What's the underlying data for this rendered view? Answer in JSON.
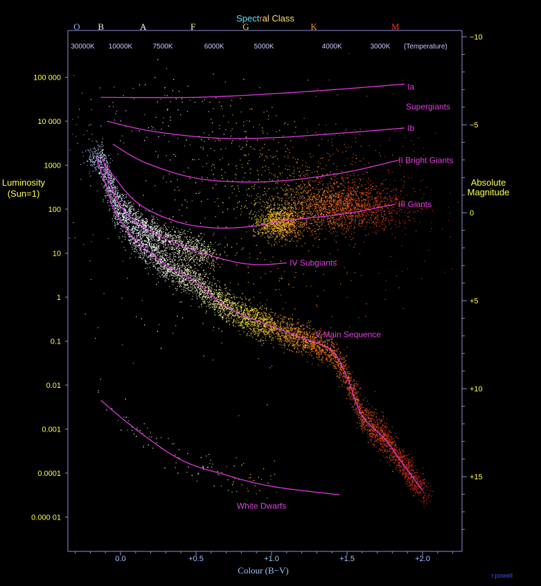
{
  "chart_data": {
    "type": "scatter",
    "subtype": "hertzsprung-russell-diagram",
    "title": {
      "parts": [
        "Spect",
        "r",
        "al Class"
      ],
      "colors": [
        "#66ddff",
        "#ff6666",
        "#ffe066"
      ]
    },
    "xlabel": "Colour (B−V)",
    "y_left_label": [
      "Luminosity",
      "(Sun=1)"
    ],
    "y_right_label": [
      "Absolute",
      "Magnitude"
    ],
    "credit": "r.powell",
    "colors": {
      "axis": "#8f8fd8",
      "luminosity_text": "#ffff44",
      "class_text": "#9ec4ff",
      "temp_text": "#c8c8ff",
      "curve": "#e036e0",
      "label": "#e040e0"
    },
    "xlim": [
      -0.35,
      2.25
    ],
    "x_ticks": [
      {
        "v": 0.0,
        "label": "0.0"
      },
      {
        "v": 0.5,
        "label": "+0.5"
      },
      {
        "v": 1.0,
        "label": "+1.0"
      },
      {
        "v": 1.5,
        "label": "+1.5"
      },
      {
        "v": 2.0,
        "label": "+2.0"
      }
    ],
    "y_left_scale": "log10",
    "y_left_ticks": [
      {
        "v": 100000,
        "label": "100 000"
      },
      {
        "v": 10000,
        "label": "10 000"
      },
      {
        "v": 1000,
        "label": "1000"
      },
      {
        "v": 100,
        "label": "100"
      },
      {
        "v": 10,
        "label": "10"
      },
      {
        "v": 1,
        "label": "1"
      },
      {
        "v": 0.1,
        "label": "0.1"
      },
      {
        "v": 0.01,
        "label": "0.01"
      },
      {
        "v": 0.001,
        "label": "0.001"
      },
      {
        "v": 0.0001,
        "label": "0.0001"
      },
      {
        "v": 1e-05,
        "label": "0.000 01"
      }
    ],
    "y_right_ticks": [
      {
        "v": -10,
        "label": "−10"
      },
      {
        "v": -5,
        "label": "−5"
      },
      {
        "v": 0,
        "label": "0"
      },
      {
        "v": 5,
        "label": "+5"
      },
      {
        "v": 10,
        "label": "+10"
      },
      {
        "v": 15,
        "label": "+15"
      }
    ],
    "spectral_classes": [
      {
        "label": "O",
        "bv": -0.29,
        "color": "#8ab8ff"
      },
      {
        "label": "B",
        "bv": -0.13,
        "color": "#e8e8ff"
      },
      {
        "label": "A",
        "bv": 0.15,
        "color": "#ffffff"
      },
      {
        "label": "F",
        "bv": 0.48,
        "color": "#ffffc0"
      },
      {
        "label": "G",
        "bv": 0.83,
        "color": "#ffd700"
      },
      {
        "label": "K",
        "bv": 1.28,
        "color": "#ff8c1a"
      },
      {
        "label": "M",
        "bv": 1.82,
        "color": "#ff2a1a"
      }
    ],
    "temperatures": [
      {
        "label": "30000K",
        "bv": -0.25
      },
      {
        "label": "10000K",
        "bv": 0.0
      },
      {
        "label": "7500K",
        "bv": 0.28
      },
      {
        "label": "6000K",
        "bv": 0.62
      },
      {
        "label": "5000K",
        "bv": 0.95
      },
      {
        "label": "4000K",
        "bv": 1.4
      },
      {
        "label": "3000K",
        "bv": 1.72
      },
      {
        "label": "(Temperature)",
        "bv": 2.02
      }
    ],
    "series": [
      {
        "name": "Ia",
        "label_pos": [
          1.9,
          60000
        ],
        "points": [
          [
            -0.13,
            35000
          ],
          [
            0.5,
            35000
          ],
          [
            1.0,
            42000
          ],
          [
            1.5,
            55000
          ],
          [
            1.88,
            70000
          ]
        ]
      },
      {
        "name": "Ib",
        "label_pos": [
          1.9,
          7000
        ],
        "points": [
          [
            -0.09,
            10000
          ],
          [
            0.2,
            6000
          ],
          [
            0.6,
            4200
          ],
          [
            1.0,
            4200
          ],
          [
            1.5,
            5500
          ],
          [
            1.88,
            7000
          ]
        ]
      },
      {
        "name": "II Bright Giants",
        "label_pos": [
          1.84,
          1300
        ],
        "points": [
          [
            -0.05,
            3000
          ],
          [
            0.15,
            1200
          ],
          [
            0.45,
            550
          ],
          [
            0.75,
            420
          ],
          [
            1.1,
            450
          ],
          [
            1.5,
            700
          ],
          [
            1.84,
            1300
          ]
        ]
      },
      {
        "name": "III    Giants",
        "label_pos": [
          1.84,
          130
        ],
        "points": [
          [
            -0.1,
            1000
          ],
          [
            0.1,
            150
          ],
          [
            0.35,
            55
          ],
          [
            0.6,
            38
          ],
          [
            0.85,
            40
          ],
          [
            1.1,
            55
          ],
          [
            1.5,
            80
          ],
          [
            1.82,
            130
          ]
        ]
      },
      {
        "name": "IV  Subgiants",
        "label_pos": [
          1.12,
          6
        ],
        "points": [
          [
            -0.12,
            1500
          ],
          [
            -0.02,
            150
          ],
          [
            0.15,
            40
          ],
          [
            0.4,
            15
          ],
          [
            0.7,
            7
          ],
          [
            0.9,
            5.5
          ],
          [
            1.1,
            6
          ]
        ]
      },
      {
        "name": "V  Main Sequence",
        "label_pos": [
          1.29,
          0.14
        ],
        "points": [
          [
            -0.16,
            1500
          ],
          [
            -0.09,
            300
          ],
          [
            -0.03,
            80
          ],
          [
            0.1,
            20
          ],
          [
            0.3,
            5.5
          ],
          [
            0.5,
            2.2
          ],
          [
            0.65,
            0.8
          ],
          [
            0.8,
            0.4
          ],
          [
            1.0,
            0.22
          ],
          [
            1.2,
            0.12
          ],
          [
            1.4,
            0.06
          ],
          [
            1.5,
            0.015
          ],
          [
            1.6,
            0.002
          ],
          [
            1.75,
            0.0006
          ],
          [
            1.86,
            0.00018
          ],
          [
            2.0,
            4e-05
          ]
        ]
      },
      {
        "name": "White Dwarfs",
        "label_pos": [
          0.77,
          1.8e-05
        ],
        "points": [
          [
            -0.13,
            0.0045
          ],
          [
            0.1,
            0.001
          ],
          [
            0.4,
            0.0002
          ],
          [
            0.7,
            9e-05
          ],
          [
            1.0,
            5e-05
          ],
          [
            1.45,
            3.2e-05
          ]
        ]
      }
    ],
    "density_regions": [
      {
        "desc": "main sequence band",
        "follow": "V  Main Sequence",
        "x_range": [
          -0.18,
          2.0
        ],
        "spread_log": 0.35,
        "count": 5500
      },
      {
        "desc": "upper main sequence / early subgiants",
        "follow": "IV  Subgiants",
        "x_range": [
          -0.15,
          0.6
        ],
        "spread_log": 0.3,
        "count": 1600
      },
      {
        "desc": "red clump",
        "center": [
          1.05,
          50
        ],
        "sd": [
          0.08,
          0.18
        ],
        "count": 1000
      },
      {
        "desc": "red giant branch",
        "center": [
          1.45,
          120
        ],
        "sd": [
          0.22,
          0.28
        ],
        "count": 1900
      },
      {
        "desc": "bright giants",
        "center": [
          1.2,
          700
        ],
        "sd": [
          0.35,
          0.45
        ],
        "count": 350
      },
      {
        "desc": "supergiants",
        "center": [
          0.5,
          8000
        ],
        "sd": [
          0.55,
          0.6
        ],
        "count": 200
      },
      {
        "desc": "white dwarfs",
        "follow": "White Dwarfs",
        "x_range": [
          -0.13,
          1.0
        ],
        "spread_log": 0.4,
        "count": 110
      },
      {
        "desc": "field scatter",
        "center": [
          0.9,
          30
        ],
        "sd": [
          0.6,
          1.4
        ],
        "count": 500
      }
    ]
  }
}
